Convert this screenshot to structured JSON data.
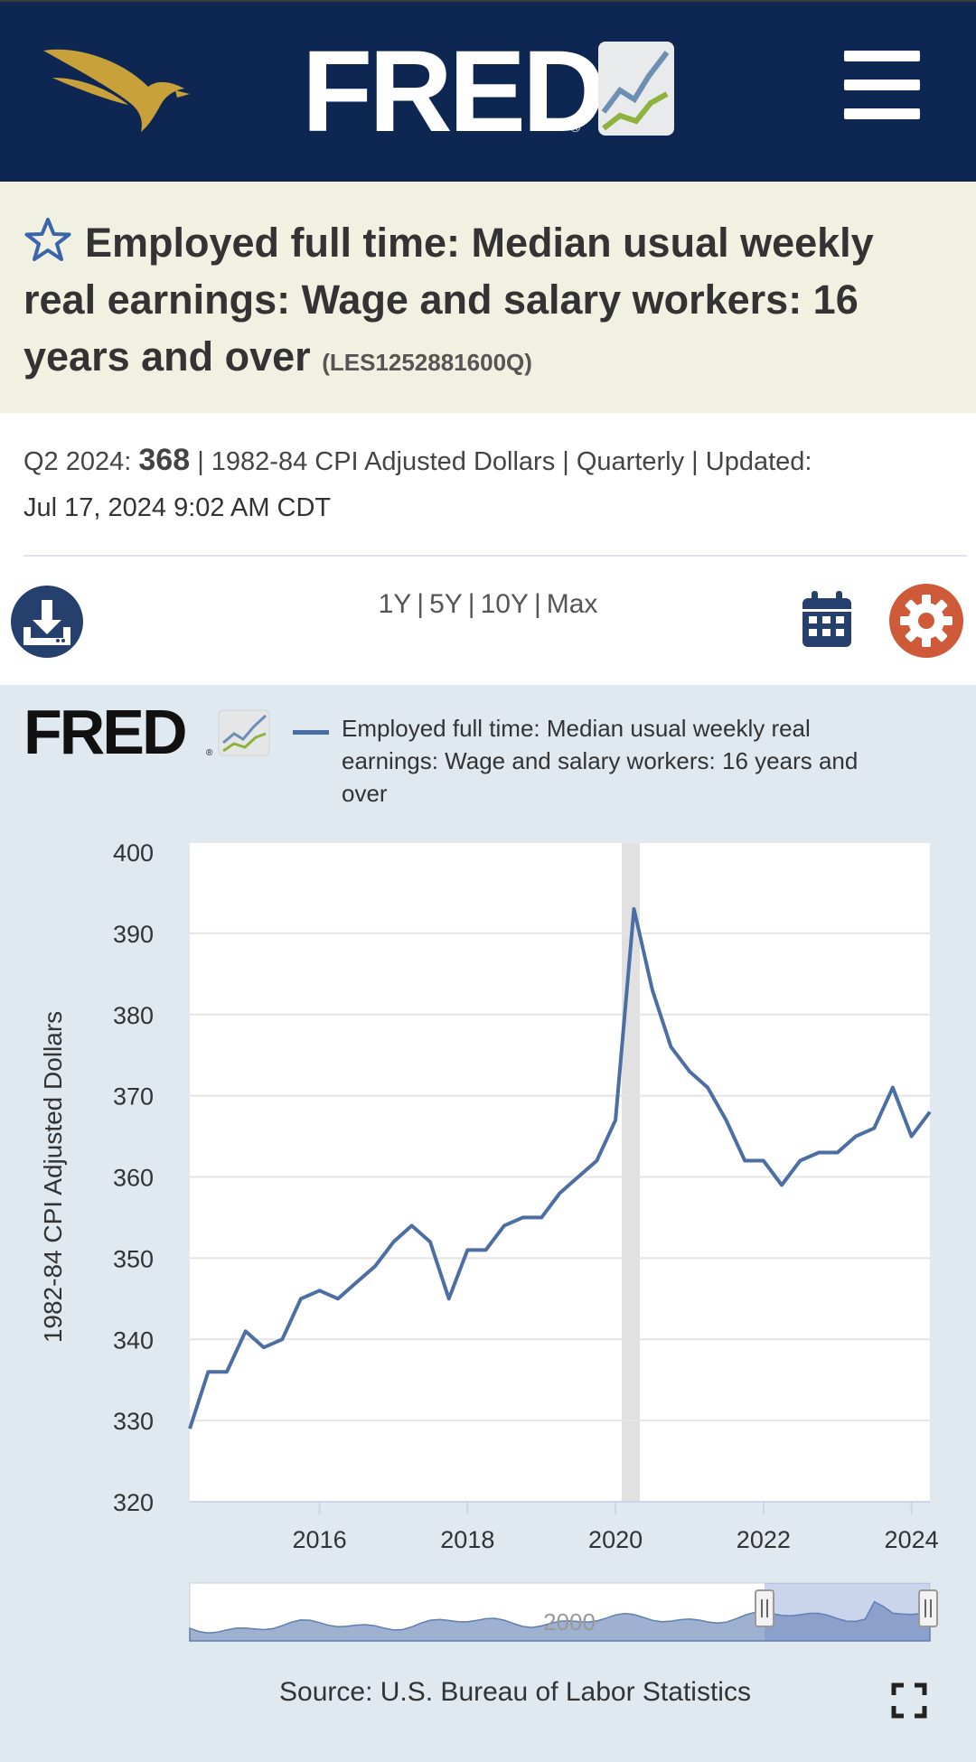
{
  "header": {
    "brand": "FRED",
    "registered_mark": "®"
  },
  "series": {
    "title": "Employed full time: Median usual weekly real earnings: Wage and salary workers: 16 years and over",
    "id": "(LES1252881600Q)",
    "latest_period": "Q2 2024:",
    "latest_value": "368",
    "meta_rest": "| 1982-84 CPI Adjusted Dollars | Quarterly | Updated:",
    "updated": "Jul 17, 2024 9:02 AM CDT"
  },
  "controls": {
    "ranges": [
      "1Y",
      "5Y",
      "10Y",
      "Max"
    ]
  },
  "chart": {
    "brand": "FRED",
    "legend_label": "Employed full time: Median usual weekly real earnings: Wage and salary workers: 16 years and over",
    "source": "Source: U.S. Bureau of Labor Statistics",
    "navigator_label": "2000"
  },
  "colors": {
    "navy": "#0e2752",
    "series": "#4b6fa5",
    "settings": "#cf5a3a",
    "title_band": "#f0f1e1",
    "chart_bg": "#e1e9f0"
  },
  "chart_data": {
    "type": "line",
    "title": "",
    "xlabel": "",
    "ylabel": "1982-84 CPI Adjusted Dollars",
    "ylim": [
      320,
      400
    ],
    "xlim": [
      "2014-04-01",
      "2024-04-01"
    ],
    "yticks": [
      320,
      330,
      340,
      350,
      360,
      370,
      380,
      390,
      400
    ],
    "xticks": [
      "2016",
      "2018",
      "2020",
      "2022",
      "2024"
    ],
    "recession_shading": [
      "2020-02-01",
      "2020-04-30"
    ],
    "grid": "horizontal",
    "legend": "top",
    "series": [
      {
        "name": "Employed full time: Median usual weekly real earnings: Wage and salary workers: 16 years and over",
        "color": "#4b6fa5",
        "x": [
          "2014-04-01",
          "2014-07-01",
          "2014-10-01",
          "2015-01-01",
          "2015-04-01",
          "2015-07-01",
          "2015-10-01",
          "2016-01-01",
          "2016-04-01",
          "2016-07-01",
          "2016-10-01",
          "2017-01-01",
          "2017-04-01",
          "2017-07-01",
          "2017-10-01",
          "2018-01-01",
          "2018-04-01",
          "2018-07-01",
          "2018-10-01",
          "2019-01-01",
          "2019-04-01",
          "2019-07-01",
          "2019-10-01",
          "2020-01-01",
          "2020-04-01",
          "2020-07-01",
          "2020-10-01",
          "2021-01-01",
          "2021-04-01",
          "2021-07-01",
          "2021-10-01",
          "2022-01-01",
          "2022-04-01",
          "2022-07-01",
          "2022-10-01",
          "2023-01-01",
          "2023-04-01",
          "2023-07-01",
          "2023-10-01",
          "2024-01-01",
          "2024-04-01"
        ],
        "values": [
          329,
          336,
          336,
          341,
          339,
          340,
          345,
          346,
          345,
          347,
          349,
          352,
          354,
          352,
          345,
          351,
          351,
          354,
          355,
          355,
          358,
          360,
          362,
          367,
          393,
          383,
          376,
          373,
          371,
          367,
          362,
          362,
          359,
          362,
          363,
          363,
          365,
          366,
          371,
          365,
          368
        ]
      }
    ]
  }
}
